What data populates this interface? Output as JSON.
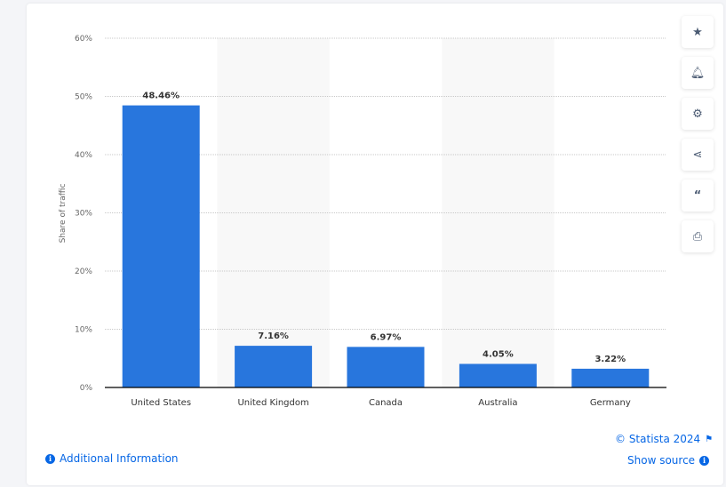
{
  "chart_data": {
    "type": "bar",
    "categories": [
      "United States",
      "United Kingdom",
      "Canada",
      "Australia",
      "Germany"
    ],
    "values": [
      48.46,
      7.16,
      6.97,
      4.05,
      3.22
    ],
    "data_labels": [
      "48.46%",
      "7.16%",
      "6.97%",
      "4.05%",
      "3.22%"
    ],
    "ylabel": "Share of traffic",
    "xlabel": "",
    "ylim": [
      0,
      60
    ],
    "yticks": [
      "0%",
      "10%",
      "20%",
      "30%",
      "40%",
      "50%",
      "60%"
    ],
    "grid": true,
    "bar_color": "#2876dd"
  },
  "sidebar_buttons": [
    "star-icon",
    "bell-icon",
    "gear-icon",
    "share-icon",
    "quote-icon",
    "print-icon"
  ],
  "footer": {
    "copyright": "© Statista 2024",
    "additional_info": "Additional Information",
    "show_source": "Show source"
  },
  "link_color": "#0666e5"
}
